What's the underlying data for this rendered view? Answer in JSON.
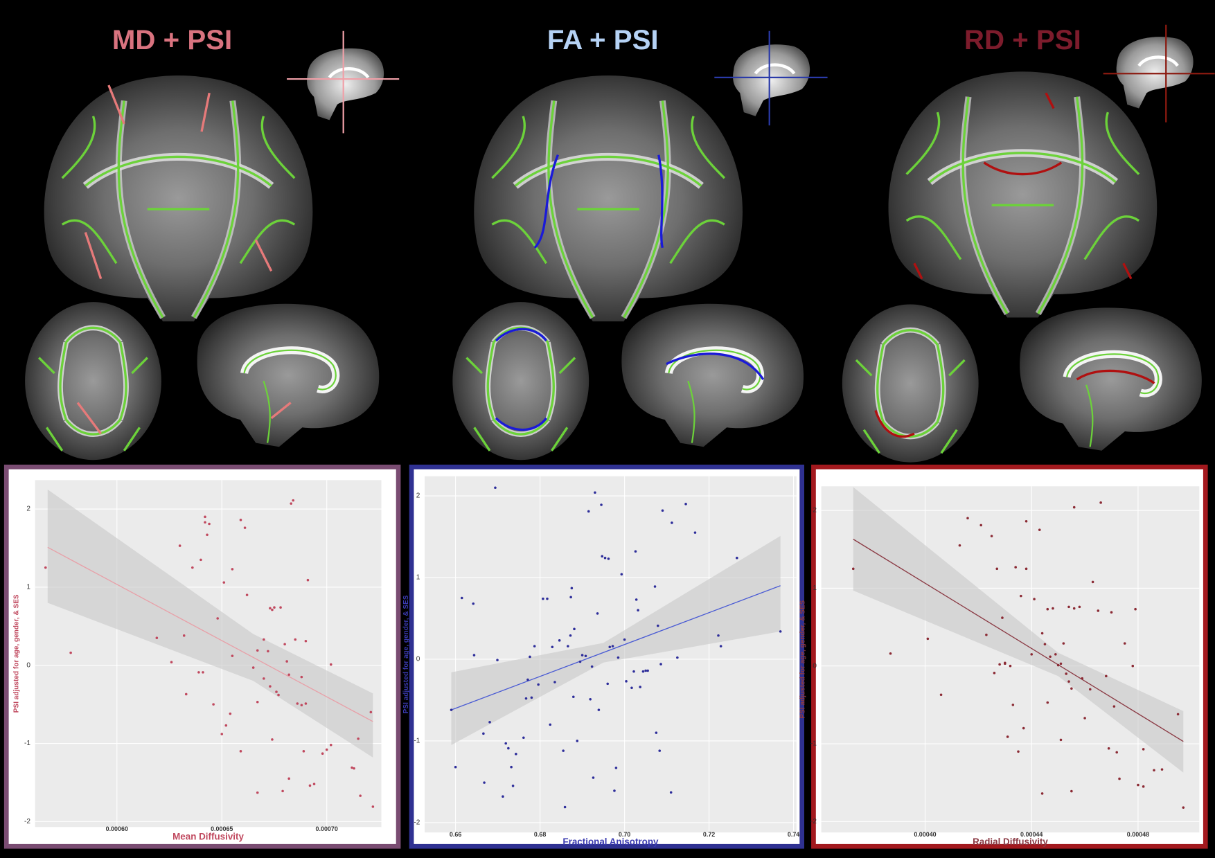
{
  "chart_data": [
    {
      "type": "scatter",
      "title": "MD + PSI",
      "title_color": "#d9737f",
      "frame_color": "#7a4c72",
      "color": "#c0485e",
      "label_color": "#c0485e",
      "x_label": "Mean Diffusivity",
      "y_label": "PSI adjusted for age, gender, & SES",
      "xlim": [
        0.000561,
        0.000726
      ],
      "ylim": [
        -2.07,
        2.37
      ],
      "grid": true,
      "xticks": [
        {
          "value": 0.0006,
          "label": "0.00060"
        },
        {
          "value": 0.00065,
          "label": "0.00065"
        },
        {
          "value": 0.0007,
          "label": "0.00070"
        }
      ],
      "yticks": [
        -2,
        -1,
        0,
        1,
        2
      ],
      "x": [
        0.000566,
        0.000578,
        0.000619,
        0.000626,
        0.00063,
        0.000632,
        0.000633,
        0.000636,
        0.000639,
        0.00064,
        0.000641,
        0.000642,
        0.000642,
        0.000643,
        0.000644,
        0.000646,
        0.000648,
        0.00065,
        0.000651,
        0.000652,
        0.000654,
        0.000655,
        0.000655,
        0.000659,
        0.000659,
        0.000662,
        0.000661,
        0.000665,
        0.000667,
        0.000667,
        0.000667,
        0.00067,
        0.00067,
        0.000672,
        0.000673,
        0.000673,
        0.000674,
        0.000674,
        0.000675,
        0.000676,
        0.000677,
        0.000678,
        0.000679,
        0.00068,
        0.000681,
        0.000682,
        0.000682,
        0.000683,
        0.000684,
        0.000685,
        0.000686,
        0.000688,
        0.000688,
        0.000689,
        0.00069,
        0.00069,
        0.000691,
        0.000692,
        0.000694,
        0.000698,
        0.0007,
        0.000702,
        0.000702,
        0.000712,
        0.000713,
        0.000715,
        0.000716,
        0.000721,
        0.000722
      ],
      "y": [
        1.25,
        0.16,
        0.35,
        0.04,
        1.53,
        0.38,
        -0.37,
        1.25,
        -0.09,
        1.35,
        -0.09,
        1.9,
        1.83,
        1.67,
        1.81,
        -0.5,
        0.6,
        -0.88,
        1.06,
        -0.77,
        -0.62,
        1.23,
        0.12,
        1.86,
        -1.1,
        0.9,
        1.76,
        -0.03,
        -0.47,
        -1.63,
        0.19,
        -0.17,
        0.33,
        0.18,
        -0.27,
        0.73,
        0.71,
        -0.95,
        0.74,
        -0.34,
        -0.38,
        0.74,
        -1.61,
        0.27,
        0.05,
        -0.12,
        -1.45,
        2.07,
        2.11,
        0.33,
        -0.49,
        -0.15,
        -0.51,
        -1.1,
        0.31,
        -0.49,
        1.09,
        -1.54,
        -1.52,
        -1.13,
        -1.08,
        -1.02,
        0.01,
        -1.31,
        -1.32,
        -0.94,
        -1.67,
        -0.6,
        -1.81
      ],
      "trend": {
        "color": "#e8a0a8",
        "x": [
          0.000567,
          0.000722
        ],
        "y": [
          1.51,
          -0.72
        ]
      },
      "band": {
        "x": [
          0.000567,
          0.000665,
          0.000722
        ],
        "lower": [
          0.8,
          -0.2,
          -1.18
        ],
        "upper": [
          2.25,
          0.4,
          -0.36
        ]
      }
    },
    {
      "type": "scatter",
      "title": "FA + PSI",
      "title_color": "#b5d2f5",
      "frame_color": "#2f3192",
      "color": "#2d2d9a",
      "label_color": "#3a3ab0",
      "x_label": "Fractional Anisotropy",
      "y_label": "PSI adjusted for age, gender, & SES",
      "xlim": [
        0.6527,
        0.7407
      ],
      "ylim": [
        -2.12,
        2.24
      ],
      "grid": true,
      "xticks": [
        0.66,
        0.68,
        {
          "value": 0.7,
          "label": "0.70"
        },
        0.72,
        0.74
      ],
      "yticks": [
        -2,
        -1,
        0,
        1,
        2
      ],
      "x": [
        0.659,
        0.66,
        0.6615,
        0.6642,
        0.6644,
        0.6666,
        0.6668,
        0.6681,
        0.6694,
        0.6699,
        0.6712,
        0.6719,
        0.6725,
        0.6732,
        0.6736,
        0.6743,
        0.6761,
        0.6767,
        0.6771,
        0.6776,
        0.678,
        0.6787,
        0.6796,
        0.6807,
        0.6817,
        0.6824,
        0.6829,
        0.6835,
        0.6846,
        0.6855,
        0.6859,
        0.6866,
        0.6872,
        0.6873,
        0.6875,
        0.6879,
        0.6881,
        0.6888,
        0.6895,
        0.69,
        0.6908,
        0.6915,
        0.6919,
        0.6923,
        0.6926,
        0.693,
        0.6936,
        0.6939,
        0.6945,
        0.6947,
        0.6954,
        0.696,
        0.6962,
        0.6965,
        0.6972,
        0.6976,
        0.698,
        0.6985,
        0.6993,
        0.7,
        0.7004,
        0.7017,
        0.7022,
        0.7026,
        0.7028,
        0.7032,
        0.7037,
        0.7044,
        0.705,
        0.7055,
        0.7072,
        0.7075,
        0.7079,
        0.7083,
        0.7086,
        0.709,
        0.711,
        0.7112,
        0.7125,
        0.7145,
        0.7167,
        0.7222,
        0.7228,
        0.7266,
        0.7369
      ],
      "y": [
        -0.62,
        -1.32,
        0.75,
        0.68,
        0.05,
        -0.91,
        -1.51,
        -0.77,
        2.1,
        -0.01,
        -1.68,
        -1.03,
        -1.09,
        -1.32,
        -1.55,
        -1.16,
        -0.96,
        -0.48,
        -0.25,
        0.03,
        -0.47,
        0.16,
        -0.31,
        0.74,
        0.74,
        -0.8,
        0.15,
        -0.28,
        0.23,
        -1.12,
        -1.81,
        0.16,
        0.29,
        0.76,
        0.87,
        -0.46,
        0.37,
        -1.0,
        -0.03,
        0.05,
        0.04,
        1.81,
        -0.49,
        -0.09,
        -1.45,
        2.04,
        0.56,
        -0.62,
        1.89,
        1.26,
        1.24,
        -0.3,
        1.23,
        0.15,
        0.16,
        -1.61,
        -1.33,
        0.02,
        1.04,
        0.24,
        -0.27,
        -0.35,
        -0.15,
        1.32,
        0.73,
        0.6,
        -0.34,
        -0.15,
        -0.14,
        -0.14,
        0.89,
        -0.9,
        0.41,
        -1.12,
        -0.06,
        1.82,
        -1.63,
        1.67,
        0.02,
        1.9,
        1.55,
        0.29,
        0.16,
        1.24,
        0.34
      ],
      "trend": {
        "color": "#4a5bd4",
        "x": [
          0.659,
          0.7369
        ],
        "y": [
          -0.62,
          0.9
        ]
      },
      "band": {
        "x": [
          0.659,
          0.695,
          0.7369
        ],
        "lower": [
          -1.05,
          -0.04,
          0.34
        ],
        "upper": [
          -0.16,
          0.2,
          1.51
        ]
      }
    },
    {
      "type": "scatter",
      "title": "RD + PSI",
      "title_color": "#7d1c2c",
      "frame_color": "#a3191e",
      "color": "#8b2a34",
      "label_color": "#8b3a44",
      "x_label": "Radial Diffusivity",
      "y_label": "PSI adjusted for age, gender, & SES",
      "xlim": [
        0.000361,
        0.000503
      ],
      "ylim": [
        -2.14,
        2.31
      ],
      "grid": true,
      "xticks": [
        {
          "value": 0.0004,
          "label": "0.00040"
        },
        {
          "value": 0.00044,
          "label": "0.00044"
        },
        {
          "value": 0.00048,
          "label": "0.00048"
        }
      ],
      "yticks": [
        -2,
        -1,
        0,
        1,
        2
      ],
      "x": [
        0.000373,
        0.000387,
        0.000401,
        0.000406,
        0.000413,
        0.000416,
        0.000421,
        0.000423,
        0.000425,
        0.000426,
        0.000427,
        0.000428,
        0.000429,
        0.00043,
        0.00043,
        0.000431,
        0.000432,
        0.000433,
        0.000434,
        0.000435,
        0.000436,
        0.000437,
        0.000438,
        0.000438,
        0.00044,
        0.000441,
        0.000443,
        0.000444,
        0.000444,
        0.000445,
        0.000446,
        0.000446,
        0.000447,
        0.000448,
        0.000449,
        0.00045,
        0.000451,
        0.000451,
        0.000452,
        0.000453,
        0.000454,
        0.000454,
        0.000455,
        0.000455,
        0.000456,
        0.000456,
        0.000458,
        0.000459,
        0.00046,
        0.000462,
        0.000463,
        0.000465,
        0.000466,
        0.000468,
        0.000469,
        0.00047,
        0.000471,
        0.000472,
        0.000473,
        0.000475,
        0.000478,
        0.000479,
        0.00048,
        0.000482,
        0.000482,
        0.000486,
        0.000489,
        0.000495,
        0.000497
      ],
      "y": [
        1.25,
        0.16,
        0.35,
        -0.37,
        1.55,
        1.9,
        1.81,
        0.4,
        1.67,
        -0.09,
        1.25,
        0.02,
        0.62,
        0.03,
        0.04,
        -0.91,
        0.0,
        -0.5,
        1.27,
        -1.1,
        0.9,
        -0.8,
        1.86,
        1.25,
        0.15,
        0.86,
        1.75,
        0.42,
        -1.64,
        0.28,
        -0.47,
        0.73,
        0.12,
        0.74,
        0.15,
        0.01,
        0.03,
        -0.95,
        0.29,
        -0.1,
        0.76,
        -0.2,
        -1.61,
        -0.29,
        2.04,
        0.74,
        0.76,
        -0.16,
        -0.67,
        -0.3,
        1.08,
        0.71,
        2.1,
        -0.13,
        -1.06,
        0.69,
        -0.52,
        -1.11,
        -1.45,
        0.29,
        0.0,
        0.73,
        -1.53,
        -1.07,
        -1.55,
        -1.34,
        -1.33,
        -0.62,
        -1.82
      ],
      "trend": {
        "color": "#8b3a44",
        "x": [
          0.000373,
          0.000497
        ],
        "y": [
          1.63,
          -0.97
        ]
      },
      "band": {
        "x": [
          0.000373,
          0.00045,
          0.000497
        ],
        "lower": [
          0.97,
          -0.13,
          -1.37
        ],
        "upper": [
          2.3,
          0.17,
          -0.58
        ]
      }
    }
  ]
}
